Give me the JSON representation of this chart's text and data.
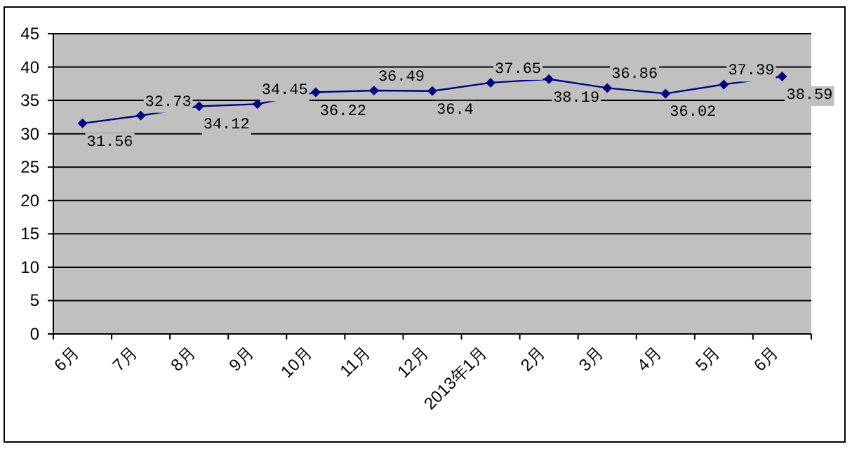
{
  "chart_data": {
    "type": "line",
    "categories": [
      "6月",
      "7月",
      "8月",
      "9月",
      "10月",
      "11月",
      "12月",
      "2013年1月",
      "2月",
      "3月",
      "4月",
      "5月",
      "6月"
    ],
    "series": [
      {
        "color": "#000080",
        "values": [
          31.56,
          32.73,
          34.12,
          34.45,
          36.22,
          36.49,
          36.4,
          37.65,
          38.19,
          36.86,
          36.02,
          37.39,
          38.59
        ]
      }
    ],
    "ylim": [
      0,
      45
    ],
    "yticks": [
      0,
      5,
      10,
      15,
      20,
      25,
      30,
      35,
      40,
      45
    ],
    "grid": "y",
    "marker": "diamond",
    "line_style": "solid",
    "data_labels": true
  }
}
